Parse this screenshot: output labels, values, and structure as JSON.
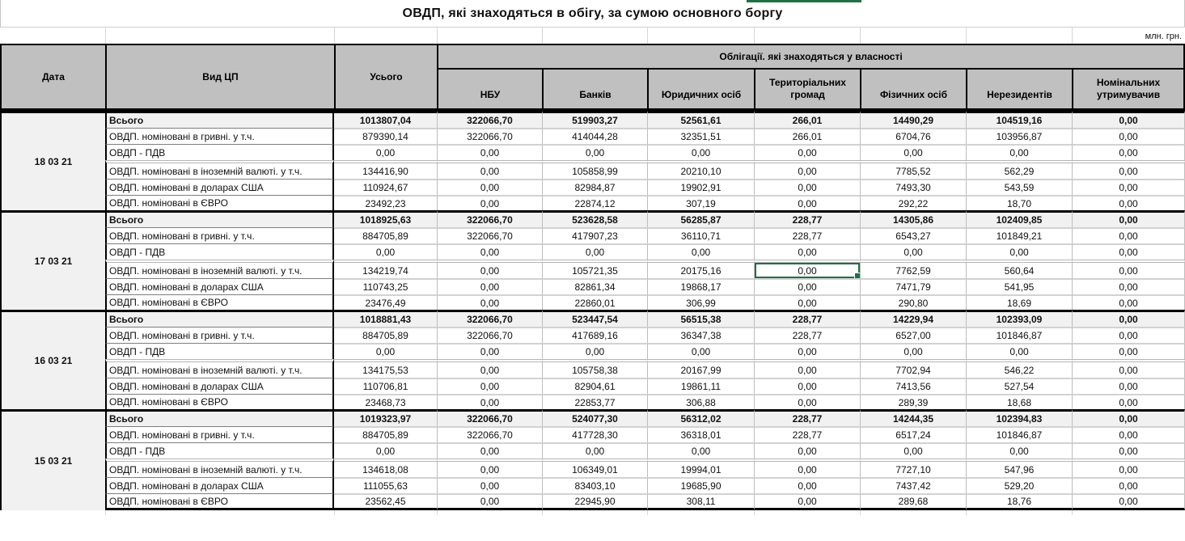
{
  "title": "ОВДП, які знаходяться в обігу, за сумою основного боргу",
  "unit_label": "млн. грн.",
  "header": {
    "date": "Дата",
    "security_type": "Вид ЦП",
    "total": "Усього",
    "ownership_group": "Облігації. які знаходяться у власності",
    "owners": [
      "НБУ",
      "Банків",
      "Юридичних осіб",
      "Територіальних громад",
      "Фізичних осіб",
      "Нерезидентів",
      "Номінальних утримувачив"
    ]
  },
  "row_labels": [
    "Всього",
    "ОВДП. номіновані в гривні. у т.ч.",
    "ОВДП - ПДВ",
    "ОВДП. номіновані в іноземній валюті. у т.ч.",
    "ОВДП. номіновані в доларах США",
    "ОВДП. номіновані в ЄВРО"
  ],
  "groups": [
    {
      "date": "18 03 21",
      "rows": [
        [
          "1013807,04",
          "322066,70",
          "519903,27",
          "52561,61",
          "266,01",
          "14490,29",
          "104519,16",
          "0,00"
        ],
        [
          "879390,14",
          "322066,70",
          "414044,28",
          "32351,51",
          "266,01",
          "6704,76",
          "103956,87",
          "0,00"
        ],
        [
          "0,00",
          "0,00",
          "0,00",
          "0,00",
          "0,00",
          "0,00",
          "0,00",
          "0,00"
        ],
        [
          "134416,90",
          "0,00",
          "105858,99",
          "20210,10",
          "0,00",
          "7785,52",
          "562,29",
          "0,00"
        ],
        [
          "110924,67",
          "0,00",
          "82984,87",
          "19902,91",
          "0,00",
          "7493,30",
          "543,59",
          "0,00"
        ],
        [
          "23492,23",
          "0,00",
          "22874,12",
          "307,19",
          "0,00",
          "292,22",
          "18,70",
          "0,00"
        ]
      ]
    },
    {
      "date": "17 03 21",
      "rows": [
        [
          "1018925,63",
          "322066,70",
          "523628,58",
          "56285,87",
          "228,77",
          "14305,86",
          "102409,85",
          "0,00"
        ],
        [
          "884705,89",
          "322066,70",
          "417907,23",
          "36110,71",
          "228,77",
          "6543,27",
          "101849,21",
          "0,00"
        ],
        [
          "0,00",
          "0,00",
          "0,00",
          "0,00",
          "0,00",
          "0,00",
          "0,00",
          "0,00"
        ],
        [
          "134219,74",
          "0,00",
          "105721,35",
          "20175,16",
          "0,00",
          "7762,59",
          "560,64",
          "0,00"
        ],
        [
          "110743,25",
          "0,00",
          "82861,34",
          "19868,17",
          "0,00",
          "7471,79",
          "541,95",
          "0,00"
        ],
        [
          "23476,49",
          "0,00",
          "22860,01",
          "306,99",
          "0,00",
          "290,80",
          "18,69",
          "0,00"
        ]
      ]
    },
    {
      "date": "16 03 21",
      "rows": [
        [
          "1018881,43",
          "322066,70",
          "523447,54",
          "56515,38",
          "228,77",
          "14229,94",
          "102393,09",
          "0,00"
        ],
        [
          "884705,89",
          "322066,70",
          "417689,16",
          "36347,38",
          "228,77",
          "6527,00",
          "101846,87",
          "0,00"
        ],
        [
          "0,00",
          "0,00",
          "0,00",
          "0,00",
          "0,00",
          "0,00",
          "0,00",
          "0,00"
        ],
        [
          "134175,53",
          "0,00",
          "105758,38",
          "20167,99",
          "0,00",
          "7702,94",
          "546,22",
          "0,00"
        ],
        [
          "110706,81",
          "0,00",
          "82904,61",
          "19861,11",
          "0,00",
          "7413,56",
          "527,54",
          "0,00"
        ],
        [
          "23468,73",
          "0,00",
          "22853,77",
          "306,88",
          "0,00",
          "289,39",
          "18,68",
          "0,00"
        ]
      ]
    },
    {
      "date": "15 03 21",
      "rows": [
        [
          "1019323,97",
          "322066,70",
          "524077,30",
          "56312,02",
          "228,77",
          "14244,35",
          "102394,83",
          "0,00"
        ],
        [
          "884705,89",
          "322066,70",
          "417728,30",
          "36318,01",
          "228,77",
          "6517,24",
          "101846,87",
          "0,00"
        ],
        [
          "0,00",
          "0,00",
          "0,00",
          "0,00",
          "0,00",
          "0,00",
          "0,00",
          "0,00"
        ],
        [
          "134618,08",
          "0,00",
          "106349,01",
          "19994,01",
          "0,00",
          "7727,10",
          "547,96",
          "0,00"
        ],
        [
          "111055,63",
          "0,00",
          "83403,10",
          "19685,90",
          "0,00",
          "7437,42",
          "529,20",
          "0,00"
        ],
        [
          "23562,45",
          "0,00",
          "22945,90",
          "308,11",
          "0,00",
          "289,68",
          "18,76",
          "0,00"
        ]
      ]
    }
  ],
  "selection": {
    "group_index": 1,
    "row_index": 3,
    "value_col_index": 4,
    "column": "Територіальних громад",
    "value": "0,00"
  },
  "colors": {
    "selection_green": "#1f7145",
    "header_bg": "#c0c0c0",
    "total_row_bg": "#f1f1f1",
    "grid_black": "#000000",
    "grid_gray": "#d2d2d2"
  }
}
